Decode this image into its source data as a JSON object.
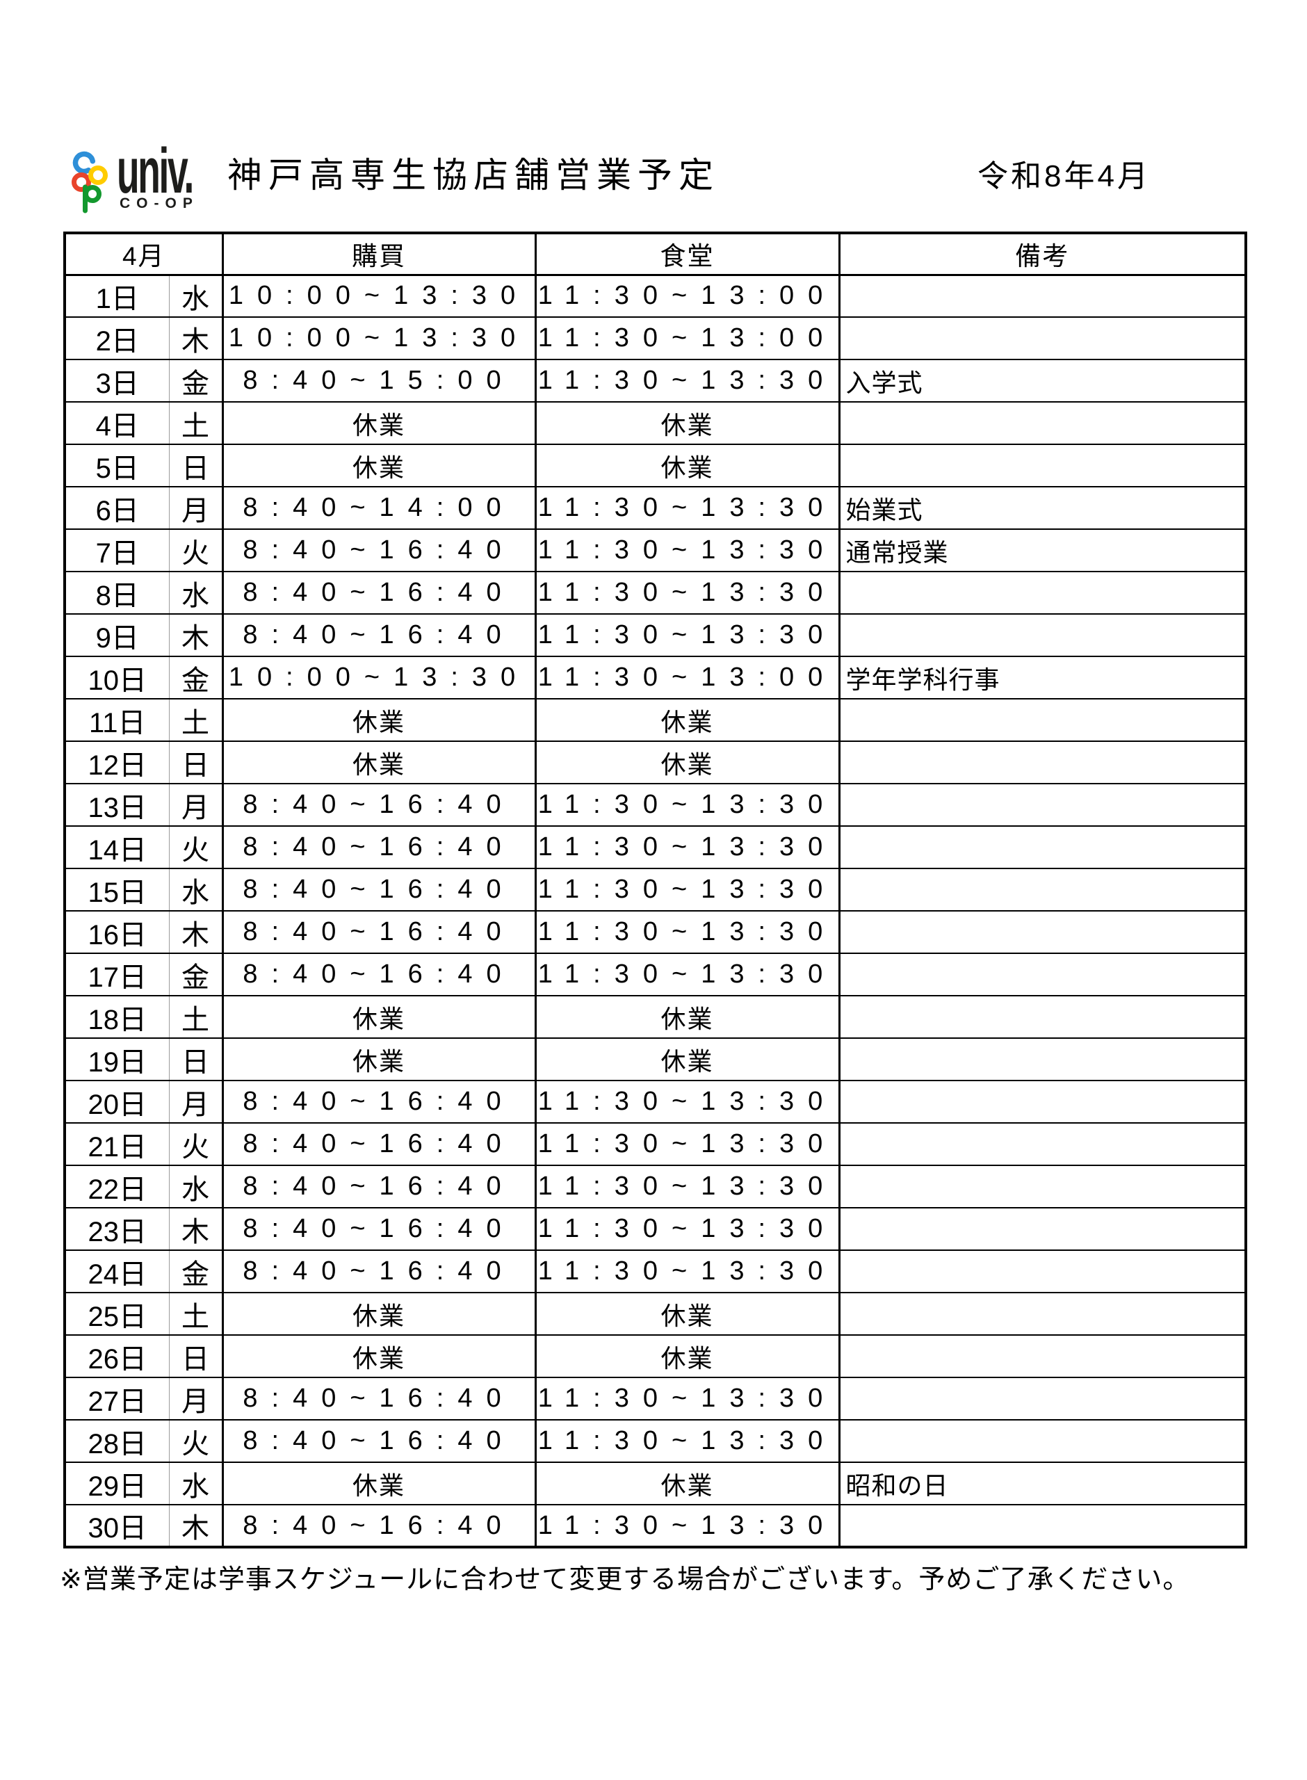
{
  "logo": {
    "brand_top": "univ.",
    "brand_bottom": "CO-OP",
    "mark_colors": {
      "c_letter": "#2e8fd8",
      "o1_letter": "#ffcc00",
      "o2_letter": "#e8442c",
      "p_letter": "#13982e"
    }
  },
  "header": {
    "title": "神戸高専生協店舗営業予定",
    "era_date": "令和8年4月"
  },
  "table": {
    "columns": {
      "month": "4月",
      "purchasing": "購買",
      "cafeteria": "食堂",
      "remarks": "備考"
    },
    "closed_label": "休業",
    "rows": [
      {
        "date": "1日",
        "day": "水",
        "purchasing": "10:00~13:30",
        "cafeteria": "11:30~13:00",
        "remarks": ""
      },
      {
        "date": "2日",
        "day": "木",
        "purchasing": "10:00~13:30",
        "cafeteria": "11:30~13:00",
        "remarks": ""
      },
      {
        "date": "3日",
        "day": "金",
        "purchasing": "8:40~15:00",
        "cafeteria": "11:30~13:30",
        "remarks": "入学式"
      },
      {
        "date": "4日",
        "day": "土",
        "purchasing": "休業",
        "cafeteria": "休業",
        "remarks": ""
      },
      {
        "date": "5日",
        "day": "日",
        "purchasing": "休業",
        "cafeteria": "休業",
        "remarks": ""
      },
      {
        "date": "6日",
        "day": "月",
        "purchasing": "8:40~14:00",
        "cafeteria": "11:30~13:30",
        "remarks": "始業式"
      },
      {
        "date": "7日",
        "day": "火",
        "purchasing": "8:40~16:40",
        "cafeteria": "11:30~13:30",
        "remarks": "通常授業"
      },
      {
        "date": "8日",
        "day": "水",
        "purchasing": "8:40~16:40",
        "cafeteria": "11:30~13:30",
        "remarks": ""
      },
      {
        "date": "9日",
        "day": "木",
        "purchasing": "8:40~16:40",
        "cafeteria": "11:30~13:30",
        "remarks": ""
      },
      {
        "date": "10日",
        "day": "金",
        "purchasing": "10:00~13:30",
        "cafeteria": "11:30~13:00",
        "remarks": "学年学科行事"
      },
      {
        "date": "11日",
        "day": "土",
        "purchasing": "休業",
        "cafeteria": "休業",
        "remarks": ""
      },
      {
        "date": "12日",
        "day": "日",
        "purchasing": "休業",
        "cafeteria": "休業",
        "remarks": ""
      },
      {
        "date": "13日",
        "day": "月",
        "purchasing": "8:40~16:40",
        "cafeteria": "11:30~13:30",
        "remarks": ""
      },
      {
        "date": "14日",
        "day": "火",
        "purchasing": "8:40~16:40",
        "cafeteria": "11:30~13:30",
        "remarks": ""
      },
      {
        "date": "15日",
        "day": "水",
        "purchasing": "8:40~16:40",
        "cafeteria": "11:30~13:30",
        "remarks": ""
      },
      {
        "date": "16日",
        "day": "木",
        "purchasing": "8:40~16:40",
        "cafeteria": "11:30~13:30",
        "remarks": ""
      },
      {
        "date": "17日",
        "day": "金",
        "purchasing": "8:40~16:40",
        "cafeteria": "11:30~13:30",
        "remarks": ""
      },
      {
        "date": "18日",
        "day": "土",
        "purchasing": "休業",
        "cafeteria": "休業",
        "remarks": ""
      },
      {
        "date": "19日",
        "day": "日",
        "purchasing": "休業",
        "cafeteria": "休業",
        "remarks": ""
      },
      {
        "date": "20日",
        "day": "月",
        "purchasing": "8:40~16:40",
        "cafeteria": "11:30~13:30",
        "remarks": ""
      },
      {
        "date": "21日",
        "day": "火",
        "purchasing": "8:40~16:40",
        "cafeteria": "11:30~13:30",
        "remarks": ""
      },
      {
        "date": "22日",
        "day": "水",
        "purchasing": "8:40~16:40",
        "cafeteria": "11:30~13:30",
        "remarks": ""
      },
      {
        "date": "23日",
        "day": "木",
        "purchasing": "8:40~16:40",
        "cafeteria": "11:30~13:30",
        "remarks": ""
      },
      {
        "date": "24日",
        "day": "金",
        "purchasing": "8:40~16:40",
        "cafeteria": "11:30~13:30",
        "remarks": ""
      },
      {
        "date": "25日",
        "day": "土",
        "purchasing": "休業",
        "cafeteria": "休業",
        "remarks": ""
      },
      {
        "date": "26日",
        "day": "日",
        "purchasing": "休業",
        "cafeteria": "休業",
        "remarks": ""
      },
      {
        "date": "27日",
        "day": "月",
        "purchasing": "8:40~16:40",
        "cafeteria": "11:30~13:30",
        "remarks": ""
      },
      {
        "date": "28日",
        "day": "火",
        "purchasing": "8:40~16:40",
        "cafeteria": "11:30~13:30",
        "remarks": ""
      },
      {
        "date": "29日",
        "day": "水",
        "purchasing": "休業",
        "cafeteria": "休業",
        "remarks": "昭和の日"
      },
      {
        "date": "30日",
        "day": "木",
        "purchasing": "8:40~16:40",
        "cafeteria": "11:30~13:30",
        "remarks": ""
      }
    ]
  },
  "footer": {
    "note": "※営業予定は学事スケジュールに合わせて変更する場合がございます。予めご了承ください。"
  }
}
